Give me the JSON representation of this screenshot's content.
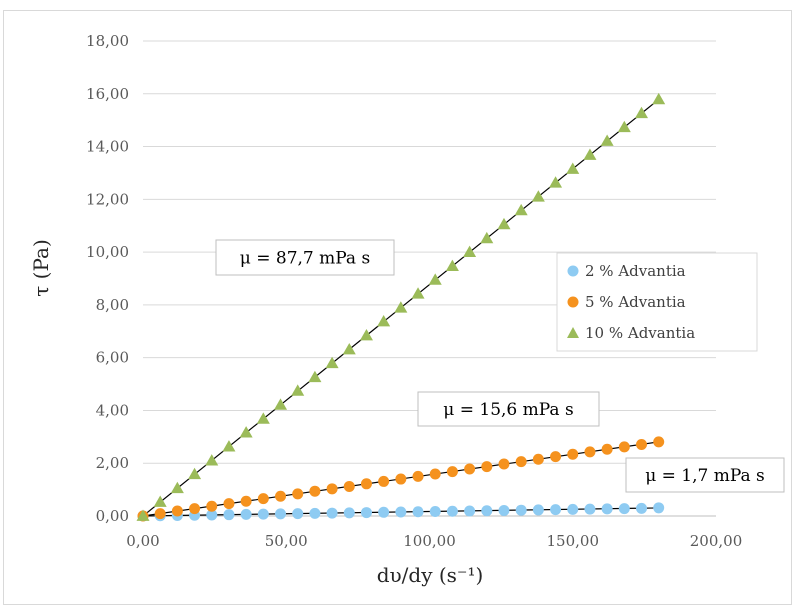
{
  "chart_data": {
    "type": "scatter",
    "title": "",
    "xlabel": "dυ/dy (s⁻¹)",
    "ylabel": "τ (Pa)",
    "xlim": [
      0,
      200
    ],
    "ylim": [
      0,
      18
    ],
    "x_ticks": [
      "0,00",
      "50,00",
      "100,00",
      "150,00",
      "200,00"
    ],
    "y_ticks": [
      "0,00",
      "2,00",
      "4,00",
      "6,00",
      "8,00",
      "10,00",
      "12,00",
      "14,00",
      "16,00",
      "18,00"
    ],
    "grid": "horizontal",
    "legend_position": "right",
    "x": [
      0,
      6,
      12,
      18,
      24,
      30,
      36,
      42,
      48,
      54,
      60,
      66,
      72,
      78,
      84,
      90,
      96,
      102,
      108,
      114,
      120,
      126,
      132,
      138,
      144,
      150,
      156,
      162,
      168,
      174,
      180
    ],
    "series": [
      {
        "name": "2 % Advantia",
        "marker": "circle",
        "color": "#8ecbf2",
        "values": [
          0.0,
          0.01,
          0.02,
          0.03,
          0.04,
          0.05,
          0.06,
          0.07,
          0.08,
          0.09,
          0.1,
          0.11,
          0.12,
          0.13,
          0.14,
          0.15,
          0.16,
          0.17,
          0.18,
          0.19,
          0.2,
          0.21,
          0.22,
          0.23,
          0.24,
          0.25,
          0.26,
          0.27,
          0.28,
          0.29,
          0.31
        ]
      },
      {
        "name": "5 % Advantia",
        "marker": "circle",
        "color": "#f5921e",
        "values": [
          0.0,
          0.09,
          0.19,
          0.28,
          0.37,
          0.47,
          0.56,
          0.66,
          0.75,
          0.84,
          0.94,
          1.03,
          1.12,
          1.22,
          1.31,
          1.4,
          1.5,
          1.59,
          1.68,
          1.78,
          1.87,
          1.97,
          2.06,
          2.15,
          2.25,
          2.34,
          2.43,
          2.53,
          2.62,
          2.71,
          2.81
        ]
      },
      {
        "name": "10 % Advantia",
        "marker": "triangle",
        "color": "#9bbb59",
        "values": [
          0.0,
          0.53,
          1.05,
          1.58,
          2.1,
          2.63,
          3.16,
          3.68,
          4.21,
          4.74,
          5.26,
          5.79,
          6.31,
          6.84,
          7.37,
          7.89,
          8.42,
          8.95,
          9.47,
          10.0,
          10.52,
          11.05,
          11.58,
          12.1,
          12.63,
          13.15,
          13.68,
          14.21,
          14.73,
          15.26,
          15.79
        ]
      }
    ],
    "trendlines": [
      {
        "series": "2 % Advantia",
        "slope": 0.0017
      },
      {
        "series": "5 % Advantia",
        "slope": 0.0156
      },
      {
        "series": "10 % Advantia",
        "slope": 0.0877
      }
    ],
    "annotations": [
      {
        "text": "μ = 87,7 mPa s",
        "series": "10 % Advantia"
      },
      {
        "text": "μ = 15,6 mPa s",
        "series": "5 % Advantia"
      },
      {
        "text": "μ = 1,7 mPa s",
        "series": "2 % Advantia"
      }
    ]
  }
}
